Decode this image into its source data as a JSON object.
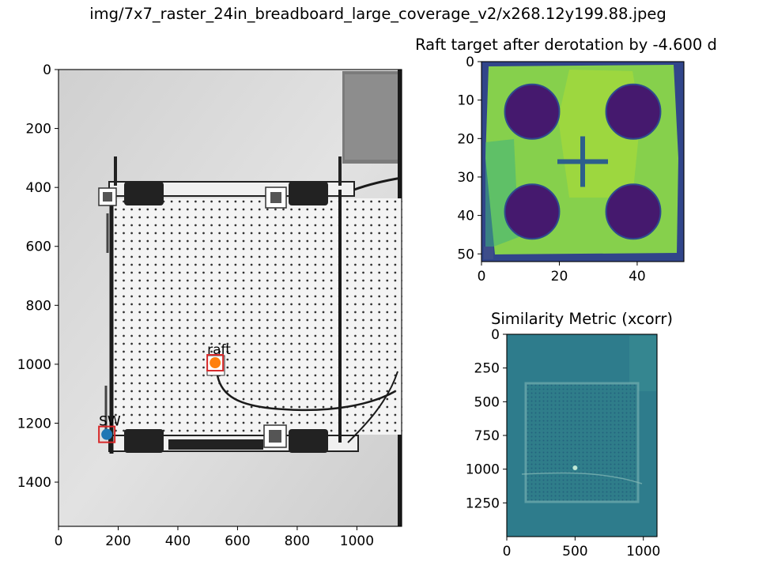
{
  "figure": {
    "suptitle": "img/7x7_raster_24in_breadboard_large_coverage_v2/x268.12y199.88.jpeg"
  },
  "chart_data": [
    {
      "type": "heatmap",
      "title": "",
      "xlabel": "",
      "ylabel": "",
      "xlim": [
        0,
        1150
      ],
      "ylim": [
        1550,
        0
      ],
      "xticks": [
        0,
        200,
        400,
        600,
        800,
        1000
      ],
      "yticks": [
        0,
        200,
        400,
        600,
        800,
        1000,
        1200,
        1400
      ],
      "colormap": "gray",
      "annotations": [
        {
          "label": "raft",
          "x": 525,
          "y": 995,
          "color": "#ff7f0e",
          "box_color": "#d62728"
        },
        {
          "label": "SW",
          "x": 162,
          "y": 1238,
          "color": "#1f77b4",
          "box_color": "#d62728"
        }
      ]
    },
    {
      "type": "heatmap",
      "title": "Raft target after derotation by -4.600 d",
      "xlabel": "",
      "ylabel": "",
      "xlim": [
        0,
        52
      ],
      "ylim": [
        52,
        0
      ],
      "xticks": [
        0,
        20,
        40
      ],
      "yticks": [
        0,
        10,
        20,
        30,
        40,
        50
      ],
      "colormap": "viridis",
      "circles": [
        {
          "cx": 13,
          "cy": 13,
          "r": 7
        },
        {
          "cx": 39,
          "cy": 13,
          "r": 7
        },
        {
          "cx": 13,
          "cy": 39,
          "r": 7
        },
        {
          "cx": 39,
          "cy": 39,
          "r": 7
        }
      ],
      "cross": {
        "cx": 26,
        "cy": 26,
        "half": 6.5
      }
    },
    {
      "type": "heatmap",
      "title": "Similarity Metric (xcorr)",
      "xlabel": "",
      "ylabel": "",
      "xlim": [
        0,
        1100
      ],
      "ylim": [
        1500,
        0
      ],
      "xticks": [
        0,
        500,
        1000
      ],
      "yticks": [
        0,
        250,
        500,
        750,
        1000,
        1250
      ],
      "colormap": "viridis",
      "peak": {
        "x": 500,
        "y": 990
      }
    }
  ]
}
